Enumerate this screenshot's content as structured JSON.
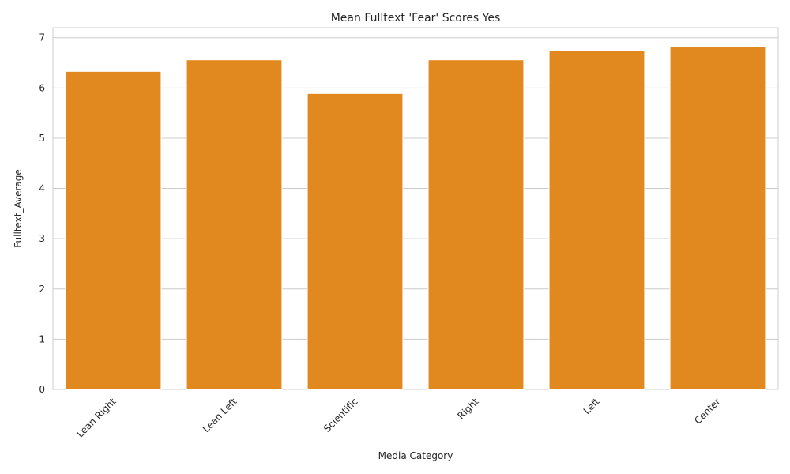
{
  "chart_data": {
    "type": "bar",
    "title": "Mean Fulltext 'Fear' Scores Yes",
    "xlabel": "Media Category",
    "ylabel": "Fulltext_Average",
    "categories": [
      "Lean Right",
      "Lean Left",
      "Scientific",
      "Right",
      "Left",
      "Center"
    ],
    "values": [
      6.33,
      6.56,
      5.89,
      6.56,
      6.75,
      6.83
    ],
    "ylim": [
      0,
      7.2
    ],
    "yticks": [
      0,
      1,
      2,
      3,
      4,
      5,
      6,
      7
    ],
    "grid": true,
    "bar_color": "#e1891f",
    "grid_color": "#cccccc"
  }
}
